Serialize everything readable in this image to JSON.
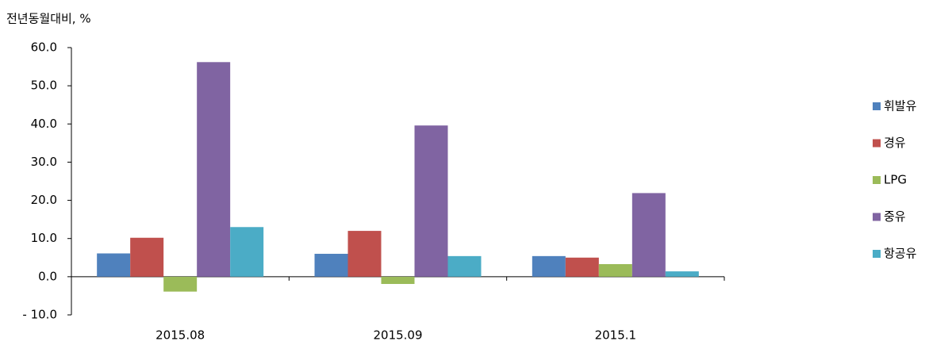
{
  "chart_data": {
    "type": "bar",
    "y_label": "전년동월대비, %",
    "categories": [
      "2015.08",
      "2015.09",
      "2015.1"
    ],
    "series": [
      {
        "name": "휘발유",
        "color": "#4f81bd",
        "values": [
          6.1,
          6.0,
          5.4
        ]
      },
      {
        "name": "경유",
        "color": "#c0504d",
        "values": [
          10.2,
          12.0,
          5.0
        ]
      },
      {
        "name": "LPG",
        "color": "#9bbb59",
        "values": [
          -3.9,
          -1.9,
          3.3
        ]
      },
      {
        "name": "중유",
        "color": "#8064a2",
        "values": [
          56.2,
          39.6,
          21.9
        ]
      },
      {
        "name": "항공유",
        "color": "#4bacc6",
        "values": [
          13.0,
          5.4,
          1.4
        ]
      }
    ],
    "ylim": [
      -10,
      60
    ],
    "yticks": [
      {
        "value": -10,
        "label": "- 10.0"
      },
      {
        "value": 0,
        "label": "0.0"
      },
      {
        "value": 10,
        "label": "10.0"
      },
      {
        "value": 20,
        "label": "20.0"
      },
      {
        "value": 30,
        "label": "30.0"
      },
      {
        "value": 40,
        "label": "40.0"
      },
      {
        "value": 50,
        "label": "50.0"
      },
      {
        "value": 60,
        "label": "60.0"
      }
    ],
    "grid": false,
    "legend": "right"
  }
}
